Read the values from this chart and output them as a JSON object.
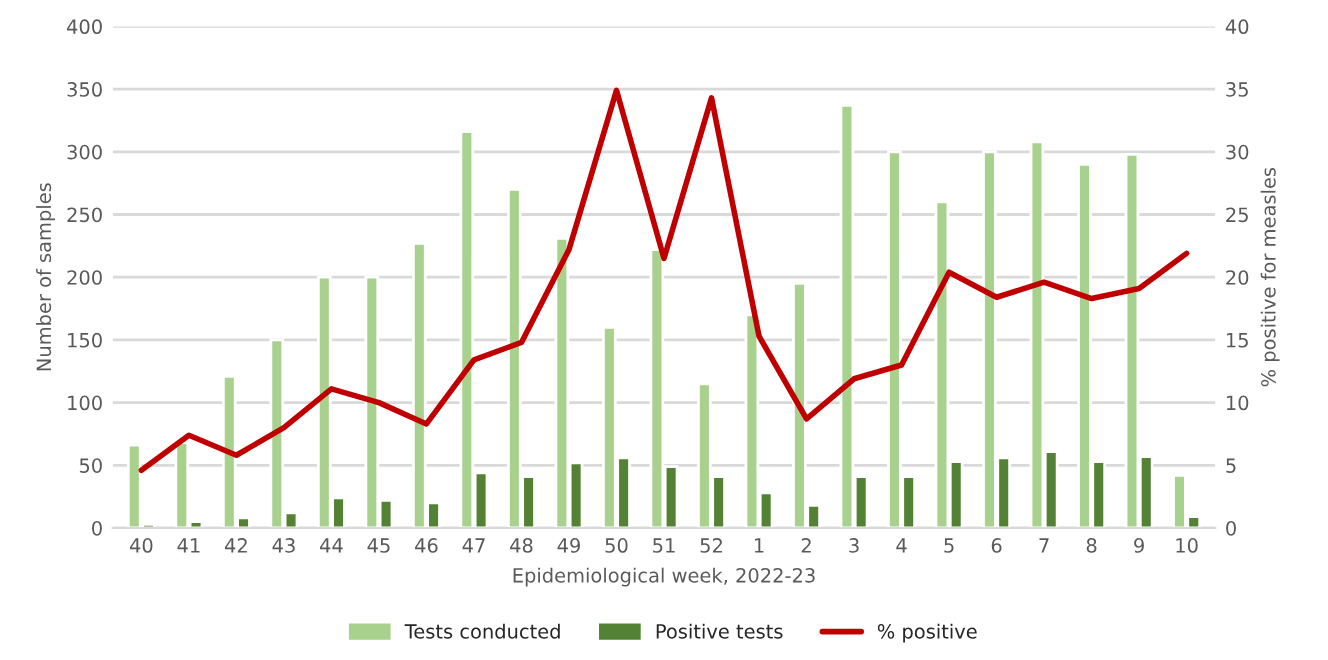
{
  "chart_data": {
    "type": "bar",
    "xlabel": "Epidemiological week, 2022-23",
    "ylabel": "Number of samples",
    "y2label": "% positive for measles",
    "categories": [
      "40",
      "41",
      "42",
      "43",
      "44",
      "45",
      "46",
      "47",
      "48",
      "49",
      "50",
      "51",
      "52",
      "1",
      "2",
      "3",
      "4",
      "5",
      "6",
      "7",
      "8",
      "9",
      "10"
    ],
    "series": [
      {
        "name": "Tests conducted",
        "color": "#a9d18e",
        "values": [
          66,
          68,
          121,
          150,
          200,
          200,
          227,
          316,
          270,
          231,
          160,
          222,
          115,
          170,
          195,
          337,
          300,
          260,
          300,
          308,
          290,
          298,
          42
        ]
      },
      {
        "name": "Positive tests",
        "color": "#548235",
        "values": [
          3,
          5,
          8,
          12,
          24,
          22,
          20,
          44,
          41,
          52,
          56,
          49,
          41,
          28,
          18,
          41,
          41,
          53,
          56,
          61,
          53,
          57,
          9
        ]
      },
      {
        "name": "% positive",
        "type": "line",
        "axis": "y2",
        "color": "#c00000",
        "values": [
          4.6,
          7.4,
          5.8,
          8.0,
          11.1,
          10.0,
          8.3,
          13.4,
          14.8,
          22.2,
          34.9,
          21.5,
          34.3,
          15.3,
          8.7,
          11.9,
          13.0,
          20.4,
          18.4,
          19.6,
          18.3,
          19.1,
          21.9
        ]
      }
    ],
    "ylim": [
      0,
      400
    ],
    "yticks": [
      0,
      50,
      100,
      150,
      200,
      250,
      300,
      350,
      400
    ],
    "y2lim": [
      0,
      40
    ],
    "y2ticks": [
      0,
      5,
      10,
      15,
      20,
      25,
      30,
      35,
      40
    ],
    "grid": "y",
    "legend": "bottom",
    "marker": "none",
    "line_style": "solid"
  }
}
